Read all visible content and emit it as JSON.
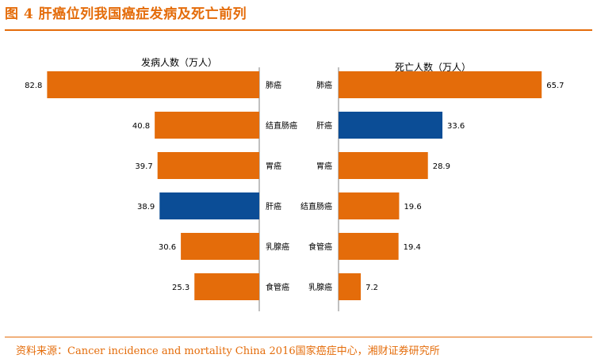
{
  "title": "图 4 肝癌位列我国癌症发病及死亡前列",
  "source": "资料来源：Cancer incidence and mortality China 2016国家癌症中心，湘财证券研究所",
  "colors": {
    "orange": "#E46C0A",
    "blue": "#0B4D96",
    "axis": "#808080"
  },
  "chart_data": [
    {
      "type": "bar",
      "orientation": "horizontal",
      "direction": "right-to-left",
      "title": "发病人数（万人）",
      "categories": [
        "肺癌",
        "结直肠癌",
        "胃癌",
        "肝癌",
        "乳腺癌",
        "食管癌"
      ],
      "values": [
        82.8,
        40.8,
        39.7,
        38.9,
        30.6,
        25.3
      ],
      "highlight": "肝癌",
      "xlim": [
        0,
        90
      ],
      "data_labels": true
    },
    {
      "type": "bar",
      "orientation": "horizontal",
      "direction": "left-to-right",
      "title": "死亡人数（万人）",
      "categories": [
        "肺癌",
        "肝癌",
        "胃癌",
        "结直肠癌",
        "食管癌",
        "乳腺癌"
      ],
      "values": [
        65.7,
        33.6,
        28.9,
        19.6,
        19.4,
        7.2
      ],
      "highlight": "肝癌",
      "xlim": [
        0,
        70
      ],
      "data_labels": true
    }
  ]
}
